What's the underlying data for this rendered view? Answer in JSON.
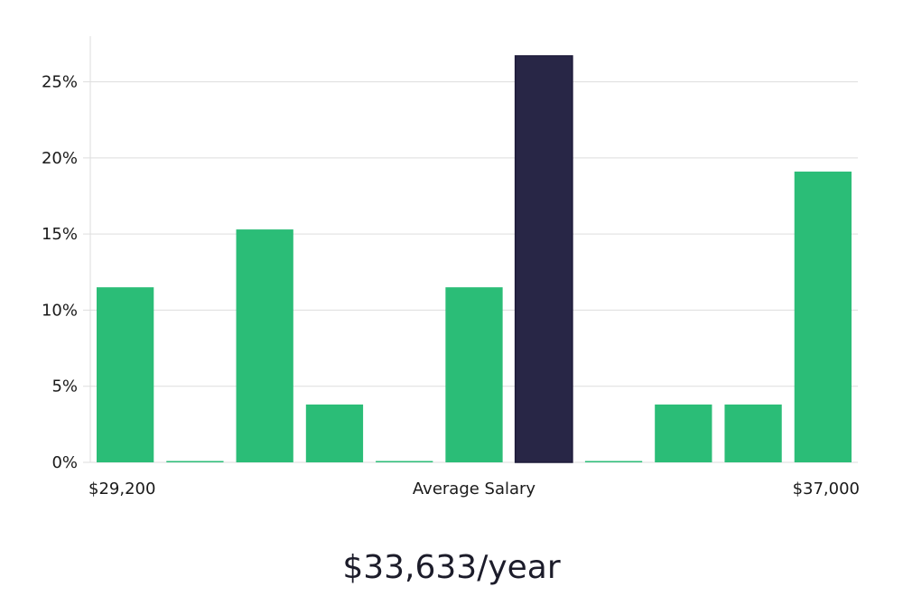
{
  "chart_data": {
    "type": "bar",
    "categories": [
      "1",
      "2",
      "3",
      "4",
      "5",
      "6",
      "7",
      "8",
      "9",
      "10",
      "11"
    ],
    "values": [
      11.5,
      0,
      15.3,
      3.8,
      0,
      11.5,
      26.7,
      0,
      3.8,
      3.8,
      19.1
    ],
    "highlight_index": 6,
    "ylim": [
      0,
      28
    ],
    "yticks": [
      0,
      5,
      10,
      15,
      20,
      25
    ],
    "ytick_labels": [
      "0%",
      "5%",
      "10%",
      "15%",
      "20%",
      "25%"
    ],
    "x_min_label": "$29,200",
    "x_center_label": "Average Salary",
    "x_max_label": "$37,000",
    "grid": true,
    "colors": {
      "bar": "#2bbd77",
      "highlight": "#282646",
      "grid": "#dddddd"
    }
  },
  "salary_summary": "$33,633/year"
}
